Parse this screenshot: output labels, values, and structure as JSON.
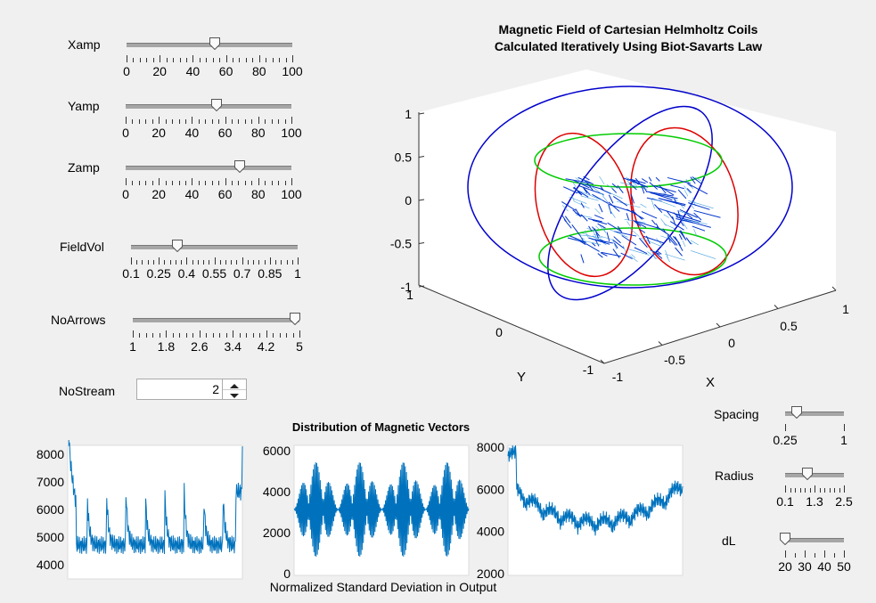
{
  "controls": {
    "xamp": {
      "label": "Xamp",
      "min": 0,
      "max": 100,
      "value": 53,
      "ticks": [
        "0",
        "20",
        "40",
        "60",
        "80",
        "100"
      ]
    },
    "yamp": {
      "label": "Yamp",
      "min": 0,
      "max": 100,
      "value": 55,
      "ticks": [
        "0",
        "20",
        "40",
        "60",
        "80",
        "100"
      ]
    },
    "zamp": {
      "label": "Zamp",
      "min": 0,
      "max": 100,
      "value": 69,
      "ticks": [
        "0",
        "20",
        "40",
        "60",
        "80",
        "100"
      ]
    },
    "fieldvol": {
      "label": "FieldVol",
      "min": 0.1,
      "max": 1,
      "value": 0.35,
      "ticks": [
        "0.1",
        "0.25",
        "0.4",
        "0.55",
        "0.7",
        "0.85",
        "1"
      ]
    },
    "noarrows": {
      "label": "NoArrows",
      "min": 1,
      "max": 5,
      "value": 4.9,
      "ticks": [
        "1",
        "1.8",
        "2.6",
        "3.4",
        "4.2",
        "5"
      ]
    },
    "nostream": {
      "label": "NoStream",
      "value": "2"
    },
    "spacing": {
      "label": "Spacing",
      "min": 0.25,
      "max": 1,
      "value": 0.4,
      "ticks": [
        "0.25",
        "1"
      ]
    },
    "radius": {
      "label": "Radius",
      "min": 0.1,
      "max": 2.5,
      "value": 1.0,
      "ticks": [
        "0.1",
        "1.3",
        "2.5"
      ]
    },
    "dl": {
      "label": "dL",
      "min": 20,
      "max": 50,
      "value": 20,
      "ticks": [
        "20",
        "30",
        "40",
        "50"
      ]
    }
  },
  "main_plot": {
    "title_line1": "Magnetic Field of Cartesian Helmholtz Coils",
    "title_line2": "Calculated Iteratively Using Biot-Savarts Law",
    "z_ticks": [
      "1",
      "0.5",
      "0",
      "-0.5",
      "-1"
    ],
    "y_ticks": [
      "1",
      "0",
      "-1"
    ],
    "x_ticks": [
      "-1",
      "-0.5",
      "0",
      "0.5",
      "1"
    ],
    "xlabel": "X",
    "ylabel": "Y",
    "colors": {
      "blue": "#0000cc",
      "red": "#dd0000",
      "green": "#00cc00",
      "arrows": "#0033cc"
    }
  },
  "distribution": {
    "title": "Distribution of Magnetic Vectors",
    "xlabel": "Normalized Standard Deviation in Output",
    "panel1_yticks": [
      "8000",
      "7000",
      "6000",
      "5000",
      "4000"
    ],
    "panel2_yticks": [
      "6000",
      "4000",
      "2000",
      "0"
    ],
    "panel3_yticks": [
      "8000",
      "6000",
      "4000",
      "2000"
    ],
    "line_color": "#0072bd"
  }
}
